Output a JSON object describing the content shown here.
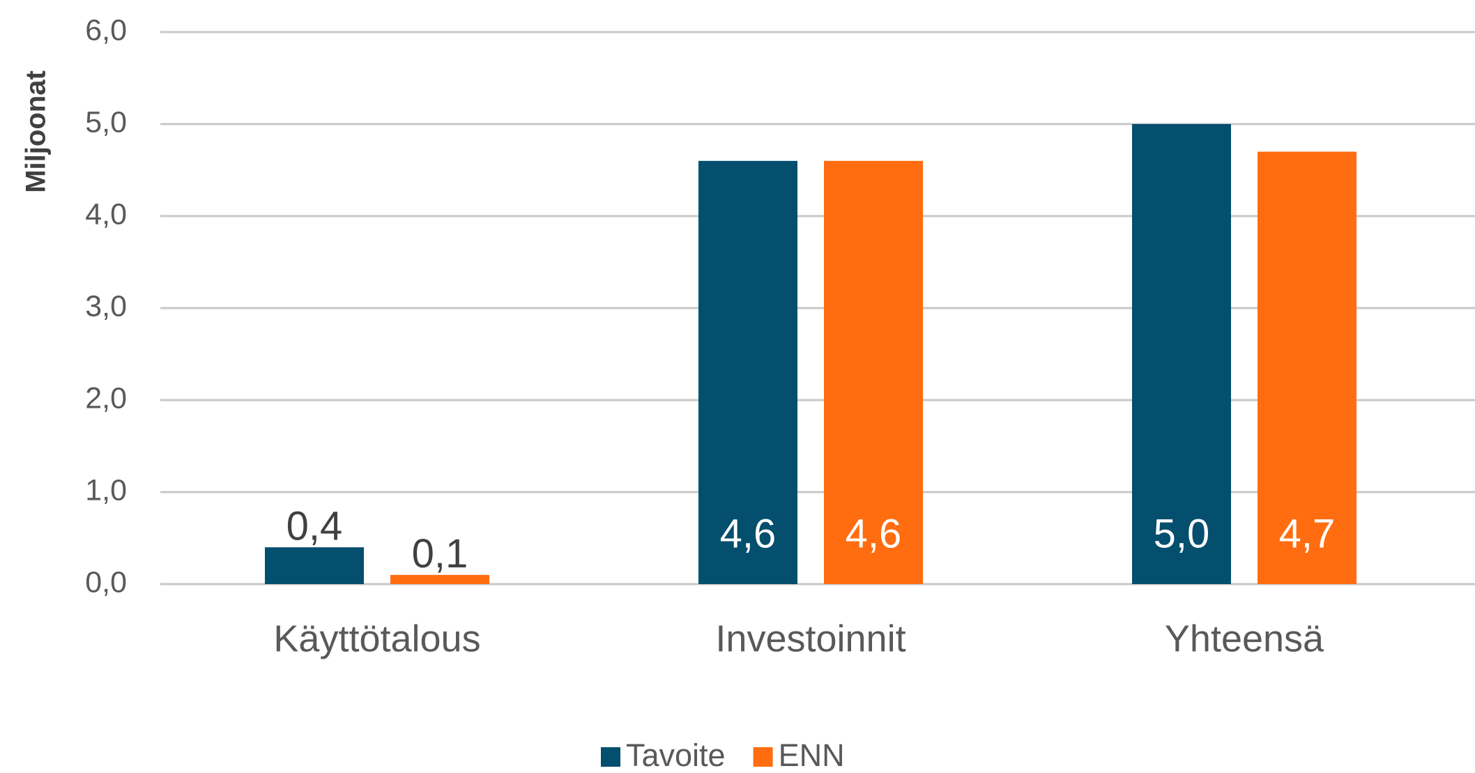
{
  "chart_data": {
    "type": "bar",
    "y_label": "Miljoonat",
    "categories": [
      "Käyttötalous",
      "Investoinnit",
      "Yhteensä"
    ],
    "series": [
      {
        "name": "Tavoite",
        "color": "#044e6e",
        "values": [
          0.4,
          4.6,
          5.0
        ],
        "value_labels": [
          "0,4",
          "4,6",
          "5,0"
        ]
      },
      {
        "name": "ENN",
        "color": "#ff6d10",
        "values": [
          0.1,
          4.6,
          4.7
        ],
        "value_labels": [
          "0,1",
          "4,6",
          "4,7"
        ]
      }
    ],
    "ylim": [
      0,
      6
    ],
    "yticks": [
      {
        "value": 0,
        "label": "0,0"
      },
      {
        "value": 1,
        "label": "1,0"
      },
      {
        "value": 2,
        "label": "2,0"
      },
      {
        "value": 3,
        "label": "3,0"
      },
      {
        "value": 4,
        "label": "4,0"
      },
      {
        "value": 5,
        "label": "5,0"
      },
      {
        "value": 6,
        "label": "6,0"
      }
    ],
    "grid": true,
    "legend": "bottom"
  }
}
